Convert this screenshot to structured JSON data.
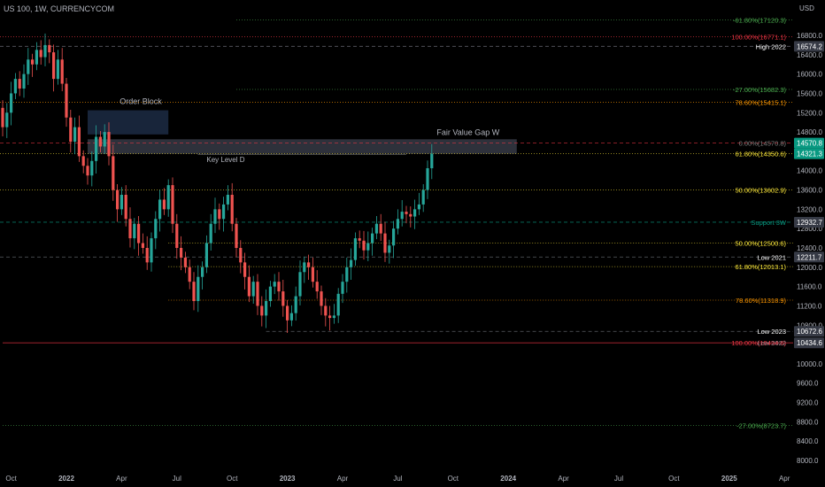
{
  "symbol": "US 100, 1W, CURRENCYCOM",
  "currency": "USD",
  "chart_data": {
    "type": "candlestick",
    "title": "US 100, 1W, CURRENCYCOM",
    "ylim": [
      7800,
      17400
    ],
    "y_ticks": [
      8000,
      8400,
      8800,
      9200,
      9600,
      10000,
      10400,
      10800,
      11200,
      11600,
      12000,
      12400,
      12800,
      13200,
      13600,
      14000,
      14400,
      14800,
      15200,
      15600,
      16000,
      16400,
      16800
    ],
    "y_tick_labels": [
      "8000.0",
      "8400.0",
      "8800.0",
      "9200.0",
      "9600.0",
      "10000.0",
      "10400.0",
      "10800.0",
      "11200.0",
      "11600.0",
      "12000.0",
      "12400.0",
      "12800.0",
      "13200.0",
      "13600.0",
      "14000.0",
      "14400.0",
      "14800.0",
      "15200.0",
      "15600.0",
      "16000.0",
      "16400.0",
      "16800.0"
    ],
    "x_labels": [
      {
        "label": "Oct",
        "week": -13
      },
      {
        "label": "2022",
        "week": 0
      },
      {
        "label": "Apr",
        "week": 13
      },
      {
        "label": "Jul",
        "week": 26
      },
      {
        "label": "Oct",
        "week": 39
      },
      {
        "label": "2023",
        "week": 52
      },
      {
        "label": "Apr",
        "week": 65
      },
      {
        "label": "Jul",
        "week": 78
      },
      {
        "label": "Oct",
        "week": 91
      },
      {
        "label": "2024",
        "week": 104
      },
      {
        "label": "Apr",
        "week": 117
      },
      {
        "label": "Jul",
        "week": 130
      },
      {
        "label": "Oct",
        "week": 143
      },
      {
        "label": "2025",
        "week": 156
      },
      {
        "label": "Apr",
        "week": 169
      }
    ],
    "closes": [
      15200,
      15500,
      15400,
      15600,
      15300,
      14900,
      15200,
      15600,
      15900,
      15700,
      16000,
      16300,
      16200,
      16500,
      16350,
      16600,
      16450,
      15900,
      16300,
      15800,
      15100,
      14600,
      14900,
      14300,
      14100,
      13900,
      14200,
      14700,
      14500,
      14800,
      14300,
      13600,
      13200,
      13500,
      13000,
      12600,
      12900,
      12500,
      12400,
      12100,
      12600,
      13000,
      13400,
      13200,
      13700,
      12900,
      12400,
      12200,
      12000,
      11700,
      11300,
      11800,
      12000,
      12500,
      12900,
      13200,
      13000,
      13300,
      13500,
      12900,
      12400,
      12100,
      11800,
      11400,
      11700,
      11200,
      11000,
      11300,
      11600,
      11700,
      11500,
      11200,
      10900,
      11050,
      11400,
      11900,
      12100,
      12000,
      11700,
      11500,
      11200,
      11000,
      10950,
      11000,
      11450,
      11700,
      12000,
      12150,
      12600,
      12550,
      12350,
      12500,
      12700,
      12900,
      12700,
      12300,
      12450,
      12800,
      13000,
      13150,
      13100,
      13050,
      13200,
      13300,
      13600,
      14050,
      14350
    ],
    "start_week": -20,
    "last_price": "14321.3",
    "levels": [
      {
        "price": 17120.3,
        "label": "-61.80%(17120.3)",
        "color": "#4caf50",
        "style": "dotted",
        "start_week": 40
      },
      {
        "price": 16771.1,
        "label": "100.00%(16771.1)",
        "color": "#f23645",
        "style": "dotted",
        "start_week": -20
      },
      {
        "price": 16574.2,
        "label": "High 2022",
        "color": "#787b86",
        "style": "dashed",
        "start_week": -20,
        "tag": "16574.2",
        "tag_bg": "#363a45",
        "label_color": "#ffffff"
      },
      {
        "price": 15682.3,
        "label": "-27.00%(15682.3)",
        "color": "#4caf50",
        "style": "dotted",
        "start_week": 40
      },
      {
        "price": 15415.1,
        "label": "78.60%(15415.1)",
        "color": "#ff9800",
        "style": "dotted",
        "start_week": -20
      },
      {
        "price": 14570.8,
        "label": "0.00%(14570.8)",
        "color": "#f23645",
        "style": "dashed",
        "start_week": -20,
        "tag": "14570.8",
        "tag_bg": "#089981",
        "label_color": "#808080"
      },
      {
        "price": 14350.6,
        "label": "61.80%(14350.6)",
        "color": "#ffeb3b",
        "style": "dotted",
        "start_week": -20,
        "tag": "14321.3",
        "tag_bg": "#089981",
        "label_color": "#ffeb3b"
      },
      {
        "price": 13602.9,
        "label": "50.00%(13602.9)",
        "color": "#ffeb3b",
        "style": "dotted",
        "start_week": -20
      },
      {
        "price": 12932.7,
        "label": "Support 3W",
        "color": "#089981",
        "style": "dashed",
        "start_week": -20,
        "tag": "12932.7",
        "tag_bg": "#363a45",
        "label_color": "#089981"
      },
      {
        "price": 12500.6,
        "label": "50.00%(12500.6)",
        "color": "#ffeb3b",
        "style": "dotted",
        "start_week": 24
      },
      {
        "price": 12211.7,
        "label": "Low 2021",
        "color": "#787b86",
        "style": "dashed",
        "start_week": -20,
        "tag": "12211.7",
        "tag_bg": "#363a45",
        "label_color": "#ffffff"
      },
      {
        "price": 12013.1,
        "label": "61.80%(12013.1)",
        "color": "#ffeb3b",
        "style": "dotted",
        "start_week": 24
      },
      {
        "price": 11318.9,
        "label": "78.60%(11318.9)",
        "color": "#ff9800",
        "style": "dotted",
        "start_week": 24
      },
      {
        "price": 10672.6,
        "label": "Low 2023",
        "color": "#787b86",
        "style": "dashed",
        "start_week": 47,
        "tag": "10672.6",
        "tag_bg": "#363a45",
        "label_color": "#ffffff"
      },
      {
        "price": 10434.6,
        "label": "100.00%(10434.6)",
        "color": "#f23645",
        "style": "solid",
        "start_week": -15,
        "tag": "10434.6",
        "tag_bg": "#363a45",
        "label_color": "#f23645"
      },
      {
        "price": 8723.7,
        "label": "-27.00%(8723.7)",
        "color": "#4caf50",
        "style": "dotted",
        "start_week": -15
      }
    ],
    "zones": [
      {
        "label": "Order Block",
        "top": 15250,
        "bottom": 14750,
        "from_week": 5,
        "to_week": 24,
        "color": "#1c2b44"
      },
      {
        "label": "Fair Value Gap W",
        "top": 14650,
        "bottom": 14350,
        "from_week": 5,
        "to_week": 106,
        "color": "#363a45"
      }
    ],
    "annotations": [
      {
        "label": "Key Level D",
        "price": 14180,
        "week": 33
      },
      {
        "label": "Low 2022",
        "price": 10434.6
      }
    ]
  }
}
